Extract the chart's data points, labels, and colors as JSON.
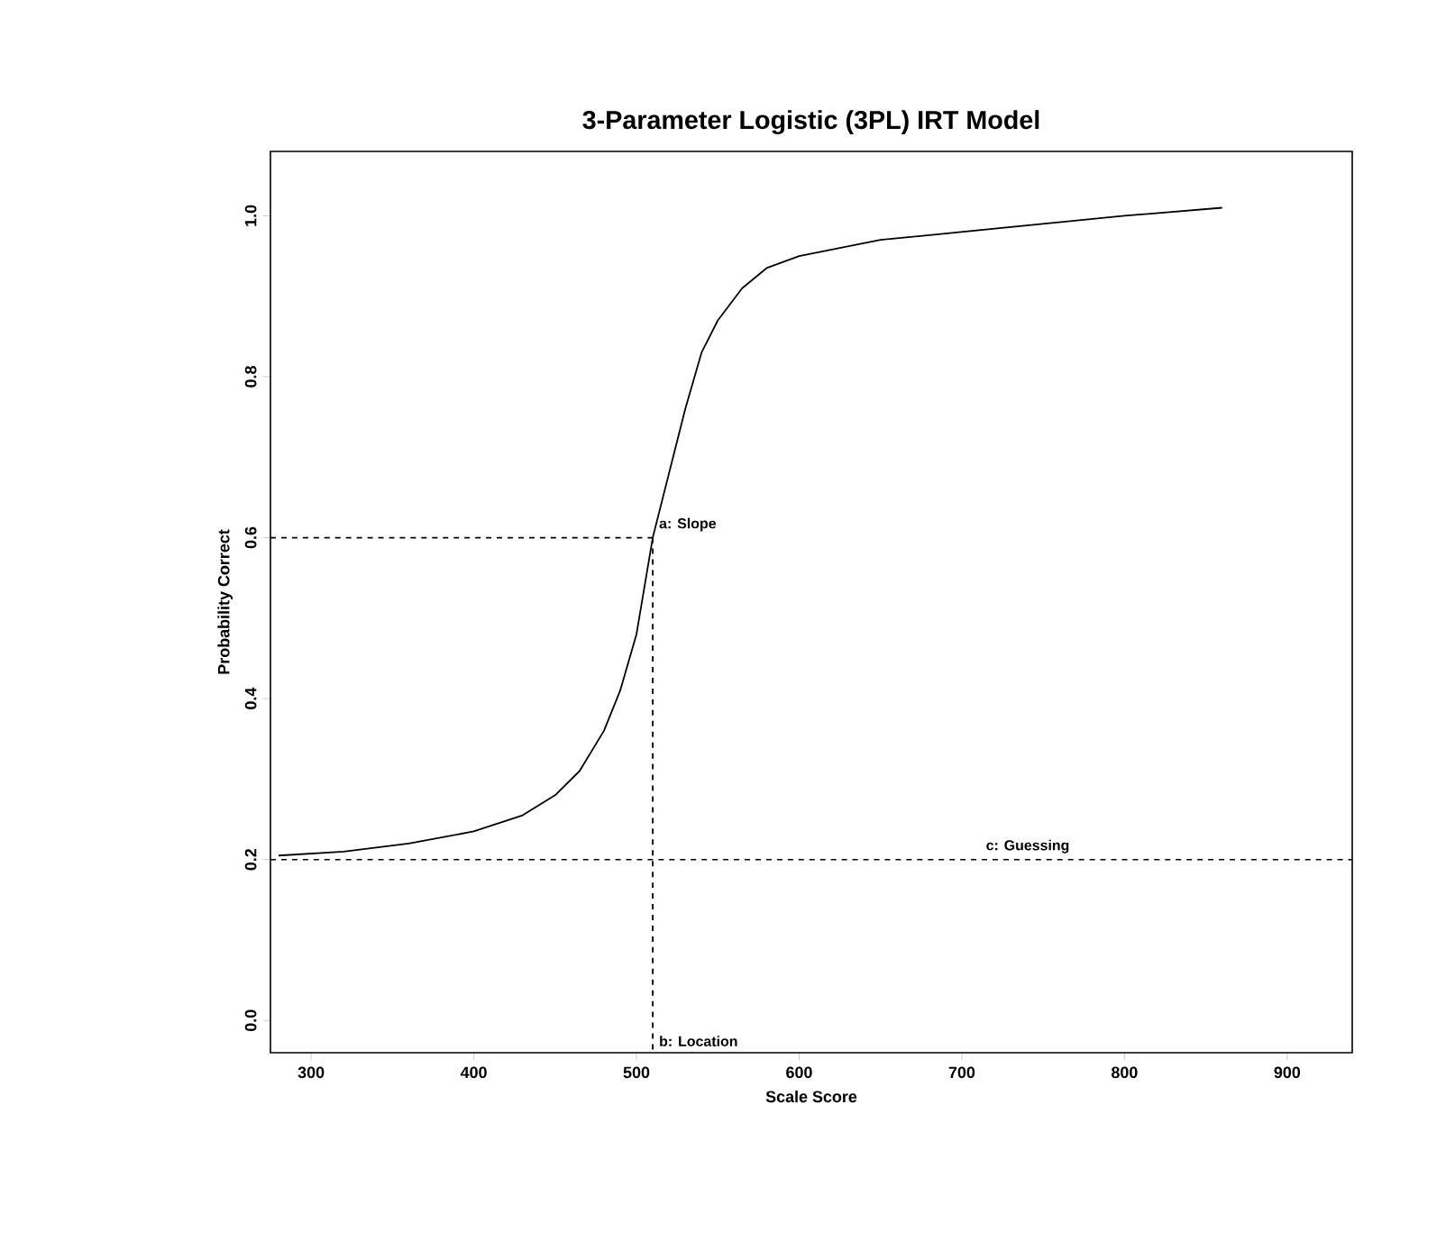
{
  "chart_data": {
    "type": "line",
    "title": "3-Parameter Logistic (3PL) IRT Model",
    "xlabel": "Scale Score",
    "ylabel": "Probability Correct",
    "xlim": [
      275,
      940
    ],
    "ylim": [
      -0.04,
      1.08
    ],
    "xticks": [
      300,
      400,
      500,
      600,
      700,
      800,
      900
    ],
    "yticks": [
      {
        "value": 0,
        "label": "0.0"
      },
      0.2,
      0.4,
      0.6,
      0.8,
      {
        "value": 1,
        "label": "1.0"
      }
    ],
    "line_style": "solid",
    "series": [
      {
        "color": "#000000",
        "x": [
          280,
          320,
          360,
          400,
          430,
          450,
          465,
          480,
          490,
          500,
          510,
          520,
          530,
          540,
          550,
          565,
          580,
          600,
          650,
          700,
          750,
          800,
          860
        ],
        "values": [
          0.205,
          0.21,
          0.22,
          0.235,
          0.255,
          0.28,
          0.31,
          0.36,
          0.41,
          0.48,
          0.6,
          0.68,
          0.76,
          0.83,
          0.87,
          0.91,
          0.935,
          0.95,
          0.97,
          0.98,
          0.99,
          1.0,
          1.01
        ]
      },
      {
        "color": "#000000",
        "line_style": "dashed",
        "x": [
          275,
          510
        ],
        "values": [
          0.6,
          0.6
        ]
      },
      {
        "color": "#000000",
        "line_style": "dashed",
        "x": [
          510,
          510
        ],
        "values": [
          0.6,
          -0.04
        ]
      }
    ],
    "ref_lines": [
      {
        "axis": "y",
        "value": 0.2,
        "label": "c: Guessing",
        "line_style": "dashed",
        "color": "#000000"
      }
    ],
    "annotations": [
      {
        "text": "a: Slope",
        "x": 510,
        "y": 0.6
      },
      {
        "text": "b: Location",
        "x": 510,
        "y": -0.04
      }
    ]
  }
}
